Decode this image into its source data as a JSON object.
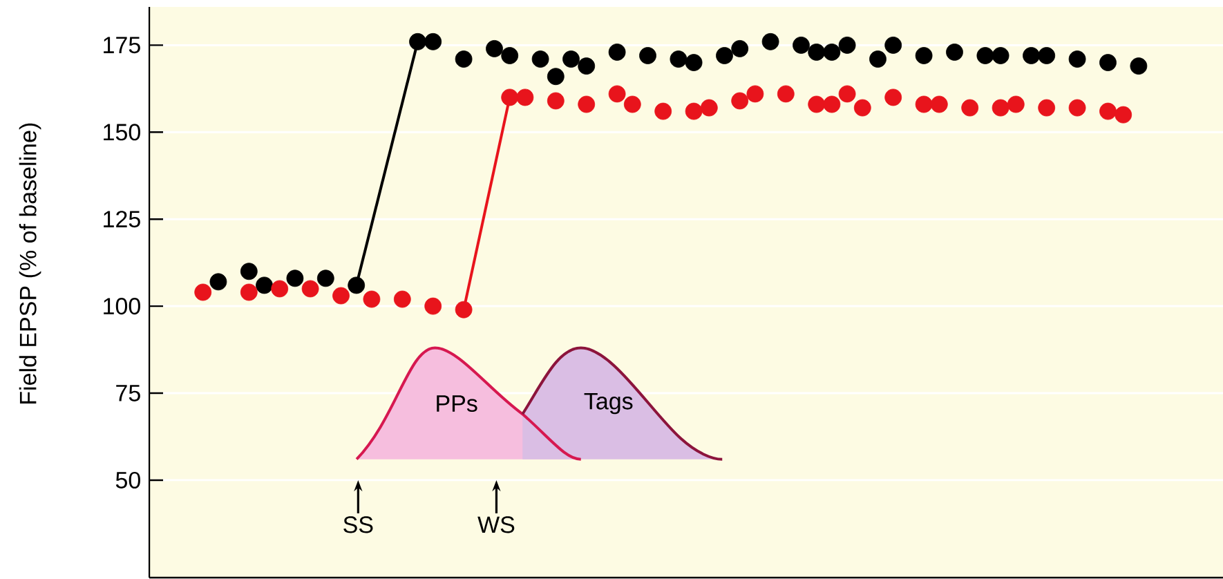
{
  "chart_data": {
    "type": "scatter",
    "ylabel": "Field EPSP (% of baseline)",
    "ylim": [
      22,
      186
    ],
    "categories": [
      null,
      null,
      null,
      null,
      null,
      null,
      null,
      null,
      null,
      null,
      null,
      null,
      null,
      null,
      null,
      null,
      null,
      null,
      null,
      null,
      null,
      null,
      null,
      null,
      null,
      null,
      null,
      null,
      null,
      null,
      null,
      null,
      null,
      null,
      null,
      null,
      null,
      null,
      null,
      null,
      null,
      null,
      null,
      null,
      null,
      null,
      null,
      null,
      null,
      null,
      null,
      null,
      null,
      null,
      null,
      null,
      null,
      null,
      null,
      null,
      null,
      null,
      null,
      null,
      null,
      null,
      null,
      null,
      null,
      null
    ],
    "yticks": [
      50,
      75,
      100,
      125,
      150,
      175
    ],
    "tick_labels": "y",
    "grid": "y",
    "series": [
      {
        "color": "#000000",
        "marker": "circle",
        "values": [
          null,
          null,
          null,
          null,
          107,
          null,
          110,
          106,
          null,
          108,
          null,
          108,
          null,
          106,
          null,
          null,
          null,
          176,
          176,
          null,
          171,
          null,
          174,
          172,
          null,
          171,
          166,
          171,
          169,
          null,
          173,
          null,
          172,
          null,
          171,
          170,
          null,
          172,
          174,
          null,
          176,
          null,
          175,
          173,
          173,
          175,
          null,
          171,
          175,
          null,
          172,
          null,
          173,
          null,
          172,
          172,
          null,
          172,
          172,
          null,
          171,
          null,
          170,
          null,
          169,
          null,
          null,
          null,
          null,
          null
        ]
      },
      {
        "color": "#e8141c",
        "marker": "circle",
        "values": [
          null,
          null,
          null,
          104,
          null,
          null,
          104,
          null,
          105,
          null,
          105,
          null,
          103,
          null,
          102,
          null,
          102,
          null,
          100,
          null,
          99,
          null,
          null,
          160,
          160,
          null,
          159,
          null,
          158,
          null,
          161,
          158,
          null,
          156,
          null,
          156,
          157,
          null,
          159,
          161,
          null,
          161,
          null,
          158,
          158,
          161,
          157,
          null,
          160,
          null,
          158,
          158,
          null,
          157,
          null,
          157,
          158,
          null,
          157,
          null,
          157,
          null,
          156,
          155,
          null,
          null,
          null,
          null,
          null,
          null
        ]
      },
      {
        "type": "line",
        "color": "#000000",
        "marker": "none",
        "values": [
          null,
          null,
          null,
          null,
          null,
          null,
          null,
          null,
          null,
          null,
          null,
          null,
          null,
          106,
          null,
          null,
          null,
          176,
          null,
          null,
          null,
          null,
          null,
          null,
          null,
          null,
          null,
          null,
          null,
          null,
          null,
          null,
          null,
          null,
          null,
          null,
          null,
          null,
          null,
          null,
          null,
          null,
          null,
          null,
          null,
          null,
          null,
          null,
          null,
          null,
          null,
          null,
          null,
          null,
          null,
          null,
          null,
          null,
          null,
          null,
          null,
          null,
          null,
          null,
          null,
          null,
          null,
          null,
          null,
          null
        ]
      },
      {
        "type": "line",
        "color": "#e8141c",
        "marker": "none",
        "values": [
          null,
          null,
          null,
          null,
          null,
          null,
          null,
          null,
          null,
          null,
          null,
          null,
          null,
          null,
          null,
          null,
          null,
          null,
          null,
          null,
          99,
          null,
          null,
          160,
          null,
          null,
          null,
          null,
          null,
          null,
          null,
          null,
          null,
          null,
          null,
          null,
          null,
          null,
          null,
          null,
          null,
          null,
          null,
          null,
          null,
          null,
          null,
          null,
          null,
          null,
          null,
          null,
          null,
          null,
          null,
          null,
          null,
          null,
          null,
          null,
          null,
          null,
          null,
          null,
          null,
          null,
          null,
          null,
          null,
          null
        ]
      }
    ],
    "annotations": [
      "SS",
      "WS",
      "PPs",
      "Tags"
    ]
  }
}
